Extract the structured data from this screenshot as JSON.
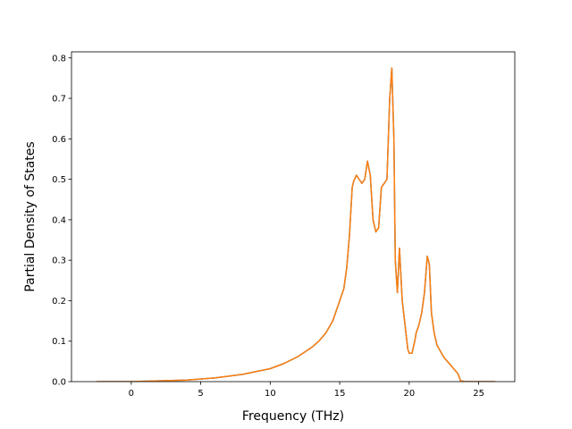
{
  "chart_data": {
    "type": "line",
    "title": "",
    "xlabel": "Frequency (THz)",
    "ylabel": "Partial Density of States",
    "xlim": [
      -4.3,
      27.6
    ],
    "ylim": [
      0,
      0.815
    ],
    "xticks": [
      0,
      5,
      10,
      15,
      20,
      25
    ],
    "yticks": [
      0.0,
      0.1,
      0.2,
      0.3,
      0.4,
      0.5,
      0.6,
      0.7,
      0.8
    ],
    "xtick_labels": [
      "0",
      "5",
      "10",
      "15",
      "20",
      "25"
    ],
    "ytick_labels": [
      "0.0",
      "0.1",
      "0.2",
      "0.3",
      "0.4",
      "0.5",
      "0.6",
      "0.7",
      "0.8"
    ],
    "grid": false,
    "legend": "none",
    "series": [
      {
        "color": "#1f77b4",
        "x": [
          -2.5,
          -1.0,
          0,
          2,
          4,
          6,
          8,
          10,
          11,
          12,
          13,
          13.5,
          14,
          14.5,
          15,
          15.3,
          15.5,
          15.7,
          15.9,
          16.0,
          16.2,
          16.4,
          16.6,
          16.8,
          17.0,
          17.2,
          17.4,
          17.6,
          17.8,
          18.0,
          18.2,
          18.4,
          18.6,
          18.75,
          18.9,
          19.0,
          19.15,
          19.3,
          19.5,
          19.7,
          19.9,
          20.0,
          20.2,
          20.4,
          20.5,
          20.7,
          20.9,
          21.1,
          21.3,
          21.45,
          21.6,
          21.8,
          22.0,
          22.5,
          23.0,
          23.5,
          23.7,
          24.0,
          25.0,
          26.2
        ],
        "y": [
          0.0,
          0.0,
          0.0,
          0.002,
          0.004,
          0.009,
          0.018,
          0.032,
          0.045,
          0.062,
          0.085,
          0.1,
          0.12,
          0.15,
          0.2,
          0.23,
          0.28,
          0.36,
          0.48,
          0.495,
          0.51,
          0.5,
          0.49,
          0.5,
          0.545,
          0.51,
          0.4,
          0.37,
          0.38,
          0.48,
          0.49,
          0.5,
          0.7,
          0.775,
          0.6,
          0.3,
          0.22,
          0.33,
          0.2,
          0.14,
          0.08,
          0.07,
          0.07,
          0.1,
          0.12,
          0.14,
          0.17,
          0.22,
          0.31,
          0.29,
          0.17,
          0.12,
          0.09,
          0.06,
          0.04,
          0.02,
          0.002,
          0.0,
          0.0,
          0.0
        ]
      },
      {
        "color": "#ff7f0e",
        "x": [
          -2.5,
          -1.0,
          0,
          2,
          4,
          6,
          8,
          10,
          11,
          12,
          13,
          13.5,
          14,
          14.5,
          15,
          15.3,
          15.5,
          15.7,
          15.9,
          16.0,
          16.2,
          16.4,
          16.6,
          16.8,
          17.0,
          17.2,
          17.4,
          17.6,
          17.8,
          18.0,
          18.2,
          18.4,
          18.6,
          18.75,
          18.9,
          19.0,
          19.15,
          19.3,
          19.5,
          19.7,
          19.9,
          20.0,
          20.2,
          20.4,
          20.5,
          20.7,
          20.9,
          21.1,
          21.3,
          21.45,
          21.6,
          21.8,
          22.0,
          22.5,
          23.0,
          23.5,
          23.7,
          24.0,
          25.0,
          26.2
        ],
        "y": [
          0.0,
          0.0,
          0.0,
          0.002,
          0.004,
          0.009,
          0.018,
          0.032,
          0.045,
          0.062,
          0.085,
          0.1,
          0.12,
          0.15,
          0.2,
          0.23,
          0.28,
          0.36,
          0.48,
          0.495,
          0.51,
          0.5,
          0.49,
          0.5,
          0.545,
          0.51,
          0.4,
          0.37,
          0.38,
          0.48,
          0.49,
          0.5,
          0.7,
          0.775,
          0.6,
          0.3,
          0.22,
          0.33,
          0.2,
          0.14,
          0.08,
          0.07,
          0.07,
          0.1,
          0.12,
          0.14,
          0.17,
          0.22,
          0.31,
          0.29,
          0.17,
          0.12,
          0.09,
          0.06,
          0.04,
          0.02,
          0.002,
          0.0,
          0.0,
          0.0
        ]
      }
    ]
  }
}
